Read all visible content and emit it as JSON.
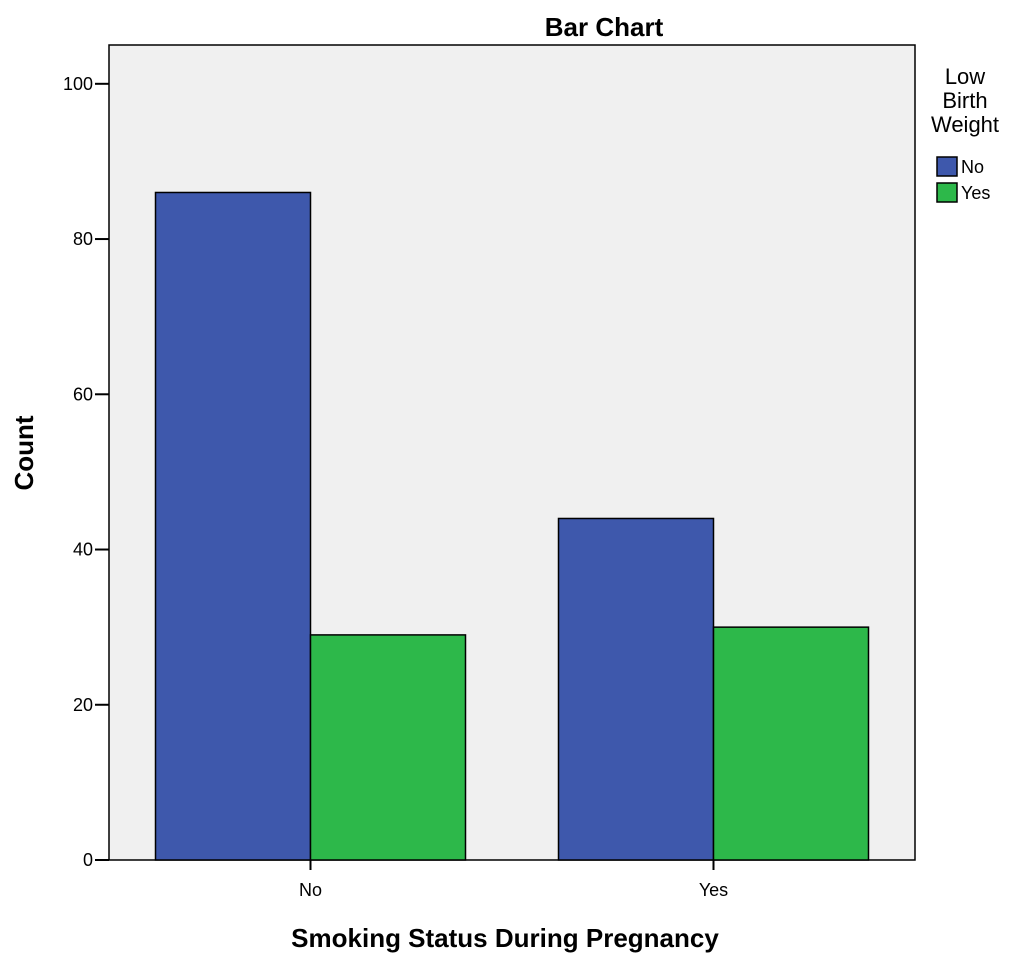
{
  "chart_data": {
    "type": "bar",
    "title": "Bar Chart",
    "xlabel": "Smoking Status During Pregnancy",
    "ylabel": "Count",
    "categories": [
      "No",
      "Yes"
    ],
    "ylim": [
      0,
      105
    ],
    "yticks": [
      0,
      20,
      40,
      60,
      80,
      100
    ],
    "grid": false,
    "legend": {
      "title_lines": [
        "Low",
        "Birth",
        "Weight"
      ],
      "placement": "right"
    },
    "series": [
      {
        "name": "No",
        "color": "#3e58ac",
        "values": [
          86,
          44
        ]
      },
      {
        "name": "Yes",
        "color": "#2db84a",
        "values": [
          29,
          30
        ]
      }
    ],
    "plot_background": "#f0f0f0"
  }
}
